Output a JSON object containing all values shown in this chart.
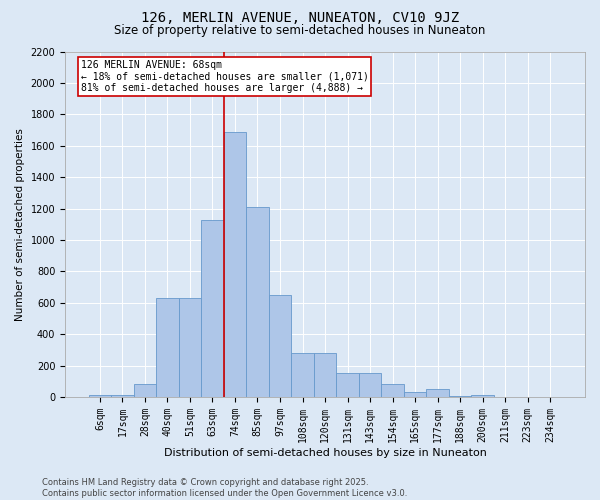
{
  "title1": "126, MERLIN AVENUE, NUNEATON, CV10 9JZ",
  "title2": "Size of property relative to semi-detached houses in Nuneaton",
  "xlabel": "Distribution of semi-detached houses by size in Nuneaton",
  "ylabel": "Number of semi-detached properties",
  "categories": [
    "6sqm",
    "17sqm",
    "28sqm",
    "40sqm",
    "51sqm",
    "63sqm",
    "74sqm",
    "85sqm",
    "97sqm",
    "108sqm",
    "120sqm",
    "131sqm",
    "143sqm",
    "154sqm",
    "165sqm",
    "177sqm",
    "188sqm",
    "200sqm",
    "211sqm",
    "223sqm",
    "234sqm"
  ],
  "values": [
    10,
    10,
    80,
    630,
    630,
    1130,
    1690,
    1210,
    650,
    280,
    280,
    150,
    150,
    80,
    30,
    50,
    5,
    10,
    3,
    2,
    2
  ],
  "bar_color": "#aec6e8",
  "bar_edge_color": "#6699cc",
  "bar_width": 1.0,
  "vline_color": "#cc0000",
  "annotation_text": "126 MERLIN AVENUE: 68sqm\n← 18% of semi-detached houses are smaller (1,071)\n81% of semi-detached houses are larger (4,888) →",
  "annotation_box_color": "#ffffff",
  "annotation_box_edge": "#cc0000",
  "ylim": [
    0,
    2200
  ],
  "yticks": [
    0,
    200,
    400,
    600,
    800,
    1000,
    1200,
    1400,
    1600,
    1800,
    2000,
    2200
  ],
  "background_color": "#dce8f5",
  "plot_background": "#dce8f5",
  "footer1": "Contains HM Land Registry data © Crown copyright and database right 2025.",
  "footer2": "Contains public sector information licensed under the Open Government Licence v3.0.",
  "title1_fontsize": 10,
  "title2_fontsize": 8.5,
  "xlabel_fontsize": 8,
  "ylabel_fontsize": 7.5,
  "tick_fontsize": 7,
  "annotation_fontsize": 7,
  "footer_fontsize": 6
}
